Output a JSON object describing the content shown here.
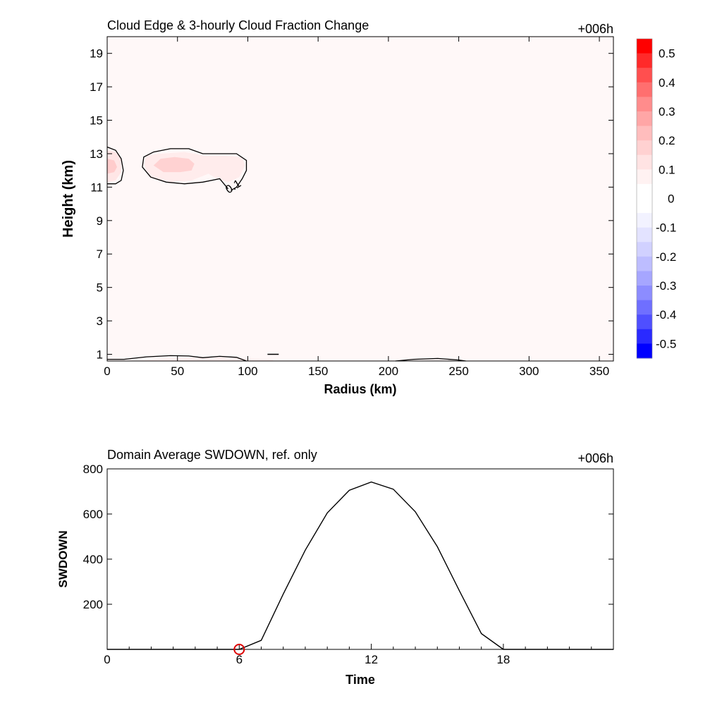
{
  "chart_data": [
    {
      "type": "heatmap",
      "title": "Cloud Edge & 3-hourly Cloud Fraction Change",
      "time_label": "+006h",
      "xlabel": "Radius (km)",
      "ylabel": "Height (km)",
      "xlim": [
        0,
        360
      ],
      "ylim": [
        0.6,
        20
      ],
      "xticks": [
        "0",
        "50",
        "100",
        "150",
        "200",
        "250",
        "300",
        "350"
      ],
      "xtick_values": [
        0,
        50,
        100,
        150,
        200,
        250,
        300,
        350
      ],
      "yticks": [
        "1",
        "3",
        "5",
        "7",
        "9",
        "11",
        "13",
        "15",
        "17",
        "19"
      ],
      "ytick_values": [
        1,
        3,
        5,
        7,
        9,
        11,
        13,
        15,
        17,
        19
      ],
      "contour_label": "0.1",
      "colorbar": {
        "labels": [
          "0.5",
          "0.4",
          "0.3",
          "0.2",
          "0.1",
          "0",
          "-0.1",
          "-0.2",
          "-0.3",
          "-0.4",
          "-0.5"
        ],
        "levels": [
          0.55,
          0.5,
          0.45,
          0.4,
          0.35,
          0.3,
          0.25,
          0.2,
          0.15,
          0.1,
          0.05,
          -0.05,
          -0.1,
          -0.15,
          -0.2,
          -0.25,
          -0.3,
          -0.35,
          -0.4,
          -0.45,
          -0.5,
          -0.55
        ],
        "colors": [
          "#ff0000",
          "#ff2a2a",
          "#ff4f4f",
          "#ff6f6f",
          "#ff8c8c",
          "#ffa6a6",
          "#ffbdbd",
          "#ffd1d1",
          "#ffe3e3",
          "#fff2f2",
          "#ffffff",
          "#f2f2ff",
          "#e3e3ff",
          "#d1d1ff",
          "#bdbdff",
          "#a6a6ff",
          "#8c8cff",
          "#6f6fff",
          "#4f4fff",
          "#2a2aff",
          "#0000ff"
        ]
      },
      "background_color": "#fff8f8",
      "features": [
        {
          "name": "upper-left-cloud",
          "r": [
            0,
            12
          ],
          "z": [
            11.2,
            13.4
          ],
          "peak": 0.2
        },
        {
          "name": "upper-mid-cloud",
          "r": [
            25,
            100
          ],
          "z": [
            10.8,
            13.2
          ],
          "peak": 0.2
        },
        {
          "name": "low-cloud-layer",
          "r": [
            0,
            120
          ],
          "z": [
            0.6,
            0.9
          ],
          "peak": 0.1
        }
      ]
    },
    {
      "type": "line",
      "title": "Domain Average SWDOWN, ref. only",
      "time_label": "+006h",
      "xlabel": "Time",
      "ylabel": "SWDOWN",
      "xlim": [
        0,
        23
      ],
      "ylim": [
        0,
        800
      ],
      "xticks": [
        "0",
        "6",
        "12",
        "18"
      ],
      "xtick_values": [
        0,
        6,
        12,
        18
      ],
      "yticks": [
        "200",
        "400",
        "600",
        "800"
      ],
      "ytick_values": [
        200,
        400,
        600,
        800
      ],
      "x": [
        0,
        1,
        2,
        3,
        4,
        5,
        6,
        7,
        8,
        9,
        10,
        11,
        12,
        13,
        14,
        15,
        16,
        17,
        18,
        19,
        20,
        21,
        22,
        23
      ],
      "values": [
        0,
        0,
        0,
        0,
        0,
        0,
        0,
        40,
        245,
        440,
        605,
        705,
        742,
        710,
        610,
        455,
        260,
        70,
        0,
        0,
        0,
        0,
        0,
        0
      ],
      "marker": {
        "x": 6,
        "y": 0,
        "color": "#dd0000"
      }
    }
  ]
}
